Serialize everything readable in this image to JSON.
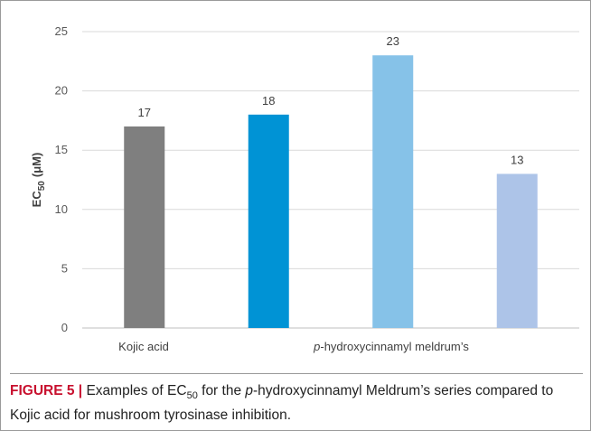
{
  "chart_data": {
    "type": "bar",
    "categories": [
      "Kojic acid",
      "",
      "",
      ""
    ],
    "values": [
      17,
      18,
      23,
      13
    ],
    "data_labels": [
      "17",
      "18",
      "23",
      "13"
    ],
    "bar_colors": [
      "#7f7f7f",
      "#0093d5",
      "#86c2e8",
      "#adc4e8"
    ],
    "ylim": [
      0,
      25
    ],
    "yticks": [
      "0",
      "5",
      "10",
      "15",
      "20",
      "25"
    ],
    "ylabel": {
      "main": "EC",
      "sub": "50",
      "units": "(μM)"
    },
    "group_label": {
      "italic": "p",
      "rest": "-hydroxycinnamyl meldrum’s"
    },
    "grid": true,
    "colors": {
      "gridline": "#d9d9d9",
      "axis": "#bfbfbf"
    }
  },
  "caption": {
    "figure_label": "FIGURE 5 |",
    "text_1": " Examples of EC",
    "text_sub": "50",
    "text_2": " for the ",
    "text_italic": "p",
    "text_3": "-hydroxycinnamyl Meldrum’s series compared to Kojic acid for mushroom tyrosinase inhibition."
  }
}
